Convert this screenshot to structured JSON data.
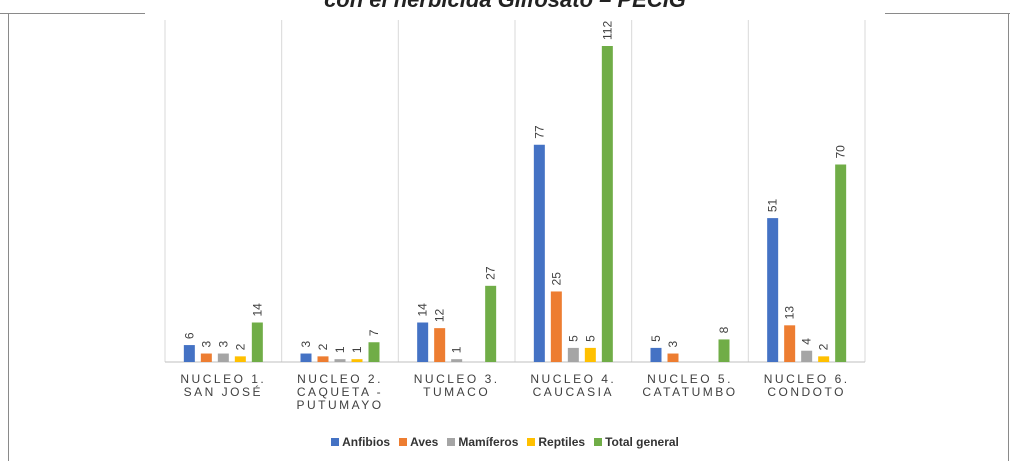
{
  "chart_data": {
    "type": "bar",
    "title": "con el herbicida Glifosato – PECIG",
    "categories": [
      [
        "NUCLEO 1.",
        "SAN JOSÉ"
      ],
      [
        "NUCLEO 2.",
        "CAQUETA -",
        "PUTUMAYO"
      ],
      [
        "NUCLEO 3.",
        "TUMACO"
      ],
      [
        "NUCLEO 4.",
        "CAUCASIA"
      ],
      [
        "NUCLEO 5.",
        "CATATUMBO"
      ],
      [
        "NUCLEO 6.",
        "CONDOTO"
      ]
    ],
    "series": [
      {
        "name": "Anfibios",
        "color": "#4472c4",
        "values": [
          6,
          3,
          14,
          77,
          5,
          51
        ]
      },
      {
        "name": "Aves",
        "color": "#ed7d31",
        "values": [
          3,
          2,
          12,
          25,
          3,
          13
        ]
      },
      {
        "name": "Mamíferos",
        "color": "#a5a5a5",
        "values": [
          3,
          1,
          1,
          5,
          null,
          4
        ]
      },
      {
        "name": "Reptiles",
        "color": "#ffc000",
        "values": [
          2,
          1,
          null,
          5,
          null,
          2
        ]
      },
      {
        "name": "Total general",
        "color": "#70ad47",
        "values": [
          14,
          7,
          27,
          112,
          8,
          70
        ]
      }
    ],
    "ylim": [
      0,
      112
    ],
    "grid": false,
    "legend_position": "bottom"
  }
}
